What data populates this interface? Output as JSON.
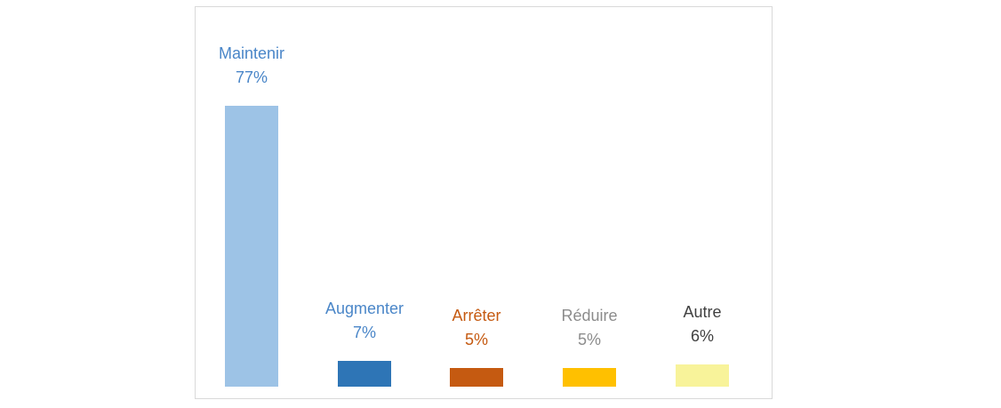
{
  "chart_data": {
    "type": "bar",
    "title": "",
    "xlabel": "",
    "ylabel": "",
    "ylim": [
      0,
      80
    ],
    "grid": false,
    "legend": "none",
    "categories": [
      "Maintenir",
      "Augmenter",
      "Arrêter",
      "Réduire",
      "Autre"
    ],
    "values": [
      77,
      7,
      5,
      5,
      6
    ],
    "value_labels": [
      "77%",
      "7%",
      "5%",
      "5%",
      "6%"
    ],
    "bar_colors": [
      "#9DC3E6",
      "#2E75B6",
      "#C55A11",
      "#FFC000",
      "#F8F39A"
    ],
    "label_colors": [
      "#4A86C8",
      "#4A86C8",
      "#C55A11",
      "#8C8C8C",
      "#404040"
    ]
  }
}
